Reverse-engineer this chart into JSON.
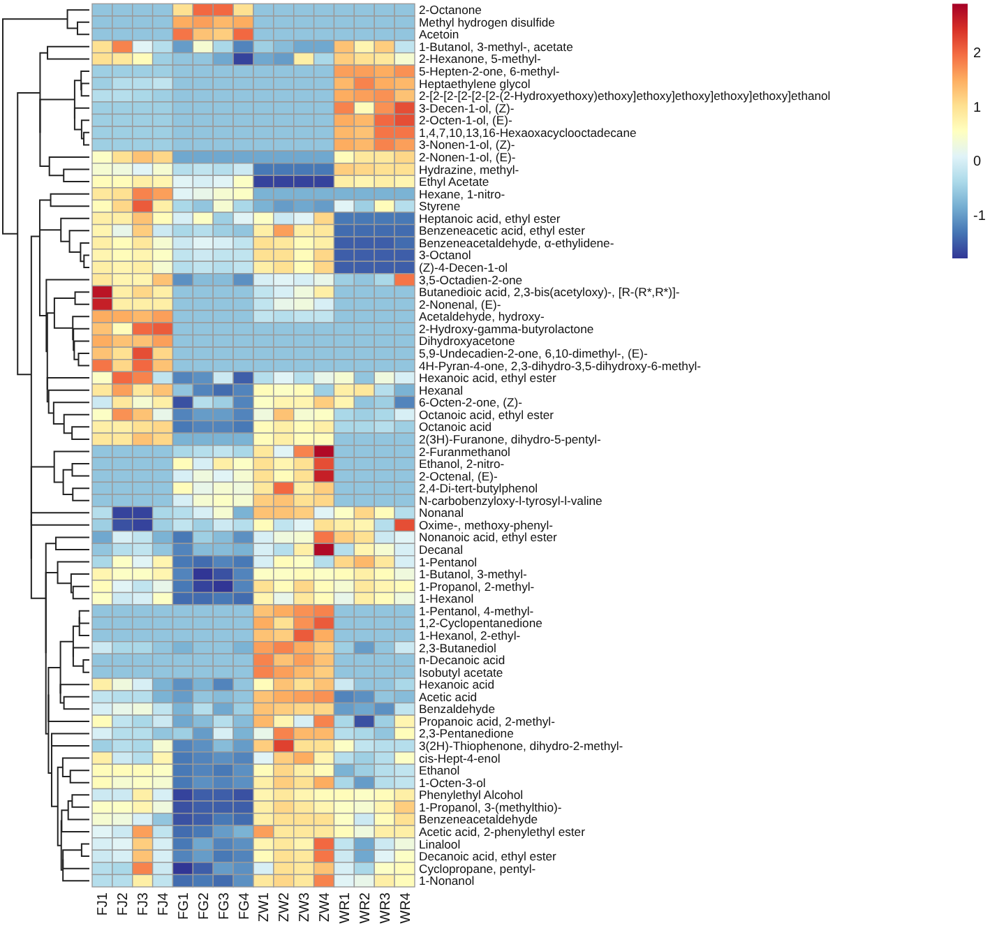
{
  "chart_data": {
    "type": "heatmap",
    "categories": [
      "FJ1",
      "FJ2",
      "FJ3",
      "FJ4",
      "FG1",
      "FG2",
      "FG3",
      "FG4",
      "ZW1",
      "ZW2",
      "ZW3",
      "ZW4",
      "WR1",
      "WR2",
      "WR3",
      "WR4"
    ],
    "y_categories": [
      "2-Octanone",
      "Methyl hydrogen disulfide",
      "Acetoin",
      "1-Butanol, 3-methyl-, acetate",
      "2-Hexanone, 5-methyl-",
      "5-Hepten-2-one, 6-methyl-",
      "Heptaethylene glycol",
      "2-[2-[2-[2-[2-[2-(2-Hydroxyethoxy)ethoxy]ethoxy]ethoxy]ethoxy]ethoxy]ethanol",
      "3-Decen-1-ol, (Z)-",
      "2-Octen-1-ol, (E)-",
      "1,4,7,10,13,16-Hexaoxacyclooctadecane",
      "3-Nonen-1-ol, (Z)-",
      "2-Nonen-1-ol, (E)-",
      "Hydrazine, methyl-",
      "Ethyl Acetate",
      "Hexane, 1-nitro-",
      "Styrene",
      "Heptanoic acid, ethyl ester",
      "Benzeneacetic acid, ethyl ester",
      "Benzeneacetaldehyde, α-ethylidene-",
      "3-Octanol",
      "(Z)-4-Decen-1-ol",
      "3,5-Octadien-2-one",
      "Butanedioic acid, 2,3-bis(acetyloxy)-, [R-(R*,R*)]-",
      "2-Nonenal, (E)-",
      "Acetaldehyde, hydroxy-",
      "2-Hydroxy-gamma-butyrolactone",
      "Dihydroxyacetone",
      "5,9-Undecadien-2-one, 6,10-dimethyl-, (E)-",
      "4H-Pyran-4-one, 2,3-dihydro-3,5-dihydroxy-6-methyl-",
      "Hexanoic acid, ethyl ester",
      "Hexanal",
      "6-Octen-2-one, (Z)-",
      "Octanoic acid, ethyl ester",
      "Octanoic acid",
      "2(3H)-Furanone, dihydro-5-pentyl-",
      "2-Furanmethanol",
      "Ethanol, 2-nitro-",
      "2-Octenal, (E)-",
      "2,4-Di-tert-butylphenol",
      "N-carbobenzyloxy-l-tyrosyl-l-valine",
      "Nonanal",
      "Oxime-, methoxy-phenyl-",
      "Nonanoic acid, ethyl ester",
      "Decanal",
      "1-Pentanol",
      "1-Butanol, 3-methyl-",
      "1-Propanol, 2-methyl-",
      "1-Hexanol",
      "1-Pentanol, 4-methyl-",
      "1,2-Cyclopentanedione",
      "1-Hexanol, 2-ethyl-",
      "2,3-Butanediol",
      "n-Decanoic acid",
      "Isobutyl acetate",
      "Hexanoic acid",
      "Acetic acid",
      "Benzaldehyde",
      "Propanoic acid, 2-methyl-",
      "2,3-Pentanedione",
      "3(2H)-Thiophenone, dihydro-2-methyl-",
      "cis-Hept-4-enol",
      "Ethanol",
      "1-Octen-3-ol",
      "Phenylethyl Alcohol",
      "1-Propanol, 3-(methylthio)-",
      "Benzeneacetaldehyde",
      "Acetic acid, 2-phenylethyl ester",
      "Linalool",
      "Decanoic acid, ethyl ester",
      "Cyclopropane, pentyl-",
      "1-Nonanol"
    ],
    "cells": [
      [
        -0.6,
        -0.6,
        -0.6,
        -0.6,
        1.0,
        2.0,
        2.0,
        1.0,
        -0.6,
        -0.6,
        -0.6,
        -0.6,
        -0.6,
        -0.6,
        -0.6,
        -0.6
      ],
      [
        -0.6,
        -0.6,
        -0.6,
        -0.6,
        1.5,
        1.6,
        1.4,
        1.5,
        -0.6,
        -0.6,
        -0.6,
        -0.6,
        -0.6,
        -0.6,
        -0.6,
        -0.6
      ],
      [
        -0.6,
        -0.6,
        -0.6,
        -0.6,
        1.9,
        1.3,
        1.2,
        2.0,
        -0.6,
        -0.6,
        -0.6,
        -0.6,
        -0.6,
        -0.6,
        -0.6,
        -0.6
      ],
      [
        1.0,
        1.8,
        0.1,
        -0.3,
        -1.0,
        0.4,
        -0.4,
        -1.2,
        -0.5,
        -0.7,
        -0.9,
        -0.9,
        1.3,
        0.7,
        1.2,
        -0.2
      ],
      [
        1.0,
        0.9,
        0.6,
        -0.5,
        -0.6,
        -0.6,
        -0.9,
        -1.7,
        -0.9,
        -1.0,
        0.8,
        -0.4,
        1.2,
        1.0,
        0.9,
        0.4
      ],
      [
        -0.5,
        -0.5,
        -0.5,
        -0.5,
        -0.6,
        -0.6,
        -0.6,
        -0.6,
        -0.6,
        -0.6,
        -0.6,
        -0.6,
        1.6,
        1.6,
        1.5,
        1.7
      ],
      [
        -0.5,
        -0.3,
        -0.3,
        -0.2,
        -0.6,
        -0.6,
        -0.6,
        -0.6,
        -0.6,
        -0.6,
        -0.6,
        -0.6,
        1.4,
        1.8,
        1.5,
        1.4
      ],
      [
        -0.3,
        -0.3,
        -0.4,
        -0.5,
        -0.6,
        -0.6,
        -0.6,
        -0.6,
        -0.6,
        -0.6,
        -0.6,
        -0.6,
        1.5,
        1.6,
        1.7,
        1.3
      ],
      [
        -0.5,
        -0.5,
        -0.5,
        -0.5,
        -0.6,
        -0.6,
        -0.6,
        -0.6,
        -0.6,
        -0.6,
        -0.6,
        -0.6,
        1.8,
        0.6,
        1.7,
        2.2
      ],
      [
        -0.5,
        -0.5,
        -0.5,
        -0.5,
        -0.6,
        -0.6,
        -0.6,
        -0.6,
        -0.6,
        -0.6,
        -0.6,
        -0.6,
        1.5,
        1.4,
        2.0,
        2.2
      ],
      [
        -0.5,
        -0.5,
        -0.5,
        -0.5,
        -0.6,
        -0.6,
        -0.6,
        -0.6,
        -0.6,
        -0.6,
        -0.6,
        -0.6,
        1.4,
        1.3,
        1.9,
        1.9
      ],
      [
        -0.5,
        -0.5,
        -0.5,
        -0.5,
        -0.6,
        -0.6,
        -0.6,
        -0.6,
        -0.6,
        -0.6,
        -0.6,
        -0.6,
        1.5,
        1.4,
        1.8,
        1.6
      ],
      [
        0.5,
        1.0,
        1.3,
        1.1,
        -0.9,
        -0.9,
        -0.9,
        -0.9,
        -0.9,
        -0.9,
        -0.9,
        -0.9,
        0.6,
        0.9,
        0.9,
        1.1
      ],
      [
        0.4,
        0.3,
        0.1,
        0.4,
        -0.3,
        -0.2,
        -0.3,
        -0.1,
        -1.3,
        -1.3,
        -1.3,
        -1.3,
        1.2,
        1.1,
        1.0,
        1.0
      ],
      [
        0.6,
        0.6,
        0.8,
        0.7,
        0.1,
        0.0,
        0.1,
        0.5,
        -1.7,
        -1.7,
        -1.7,
        -1.7,
        0.8,
        0.7,
        0.8,
        0.7
      ],
      [
        0.9,
        1.0,
        1.8,
        1.6,
        0.1,
        0.2,
        0.4,
        0.5,
        -0.8,
        -0.8,
        -0.8,
        -0.8,
        -0.8,
        -0.8,
        -0.8,
        -0.8
      ],
      [
        0.6,
        1.1,
        2.1,
        0.8,
        -0.4,
        -0.6,
        0.4,
        -0.4,
        -0.8,
        -1.0,
        -0.9,
        -1.0,
        0.1,
        -0.5,
        0.6,
        -0.3
      ],
      [
        0.8,
        0.8,
        1.3,
        0.6,
        0.0,
        0.5,
        -0.5,
        0.1,
        0.5,
        -0.1,
        0.1,
        1.1,
        -1.3,
        -1.3,
        -1.3,
        -1.3
      ],
      [
        0.7,
        0.2,
        1.2,
        -0.1,
        -0.4,
        -0.3,
        -0.5,
        -0.6,
        0.8,
        1.6,
        0.8,
        0.9,
        -1.4,
        -1.4,
        -1.4,
        -1.4
      ],
      [
        0.8,
        0.6,
        0.9,
        0.4,
        -0.1,
        0.1,
        0.0,
        -0.2,
        1.0,
        0.9,
        0.6,
        0.8,
        -1.5,
        -1.5,
        -1.5,
        -1.4
      ],
      [
        0.7,
        0.6,
        0.7,
        0.5,
        -0.2,
        -0.1,
        -0.2,
        -0.2,
        1.0,
        1.0,
        0.6,
        1.1,
        -1.5,
        -1.5,
        -1.5,
        -1.5
      ],
      [
        0.8,
        0.7,
        0.8,
        0.4,
        -0.3,
        -0.2,
        -0.3,
        -0.2,
        0.8,
        1.0,
        0.6,
        1.1,
        -1.5,
        -1.5,
        -1.5,
        -1.5
      ],
      [
        0.9,
        0.7,
        0.7,
        1.3,
        -1.1,
        -0.7,
        -0.7,
        -1.1,
        0.0,
        0.1,
        0.0,
        0.2,
        -0.5,
        -0.6,
        -0.4,
        1.9
      ],
      [
        2.7,
        0.8,
        1.1,
        0.8,
        -0.6,
        -0.6,
        -0.6,
        -0.6,
        -0.2,
        0.0,
        0.3,
        0.8,
        -0.6,
        -0.6,
        -0.6,
        -0.6
      ],
      [
        2.6,
        0.8,
        0.8,
        0.8,
        -0.6,
        -0.6,
        -0.6,
        -0.6,
        -0.2,
        0.2,
        0.3,
        0.0,
        -0.6,
        -0.6,
        -0.6,
        -0.6
      ],
      [
        1.5,
        1.5,
        1.4,
        1.6,
        -0.6,
        -0.6,
        -0.6,
        -0.6,
        -0.2,
        -0.3,
        -0.2,
        -0.2,
        -0.6,
        -0.6,
        -0.6,
        -0.6
      ],
      [
        1.3,
        0.6,
        2.0,
        2.1,
        -0.6,
        -0.6,
        -0.6,
        -0.6,
        -0.6,
        -0.6,
        -0.6,
        -0.6,
        -0.6,
        -0.6,
        -0.6,
        -0.6
      ],
      [
        1.5,
        1.3,
        1.3,
        1.6,
        -0.6,
        -0.6,
        -0.6,
        -0.6,
        -0.6,
        -0.6,
        -0.6,
        -0.6,
        -0.6,
        -0.6,
        -0.6,
        -0.6
      ],
      [
        1.3,
        1.0,
        2.2,
        1.1,
        -0.6,
        -0.6,
        -0.6,
        -0.6,
        -0.6,
        -0.6,
        -0.6,
        -0.6,
        -0.6,
        -0.6,
        -0.6,
        -0.6
      ],
      [
        1.9,
        1.1,
        2.0,
        1.3,
        -0.6,
        -0.6,
        -0.6,
        -0.6,
        -0.6,
        -0.6,
        -0.6,
        -0.6,
        -0.6,
        -0.6,
        -0.6,
        -0.6
      ],
      [
        0.5,
        2.0,
        1.8,
        -0.2,
        -1.2,
        -1.1,
        -0.1,
        -1.5,
        -0.3,
        0.1,
        -0.3,
        0.2,
        0.4,
        -0.6,
        0.3,
        0.0
      ],
      [
        0.9,
        1.6,
        0.9,
        1.3,
        -0.6,
        -1.2,
        -1.4,
        -1.2,
        0.6,
        0.5,
        0.6,
        -0.5,
        0.8,
        0.9,
        -0.3,
        -0.8
      ],
      [
        -0.1,
        0.9,
        0.4,
        0.8,
        -1.6,
        -0.3,
        -0.5,
        -1.2,
        0.5,
        0.7,
        0.7,
        1.2,
        0.7,
        -0.6,
        -0.5,
        -1.2
      ],
      [
        0.5,
        1.7,
        1.3,
        0.2,
        -1.2,
        -1.0,
        -1.0,
        -1.2,
        0.3,
        1.3,
        0.4,
        0.5,
        -0.4,
        -0.5,
        -0.4,
        0.0
      ],
      [
        0.8,
        0.8,
        1.0,
        1.1,
        -1.3,
        -1.2,
        -1.2,
        -1.3,
        0.6,
        0.8,
        0.6,
        0.8,
        -0.4,
        -0.4,
        -0.3,
        -0.5
      ],
      [
        0.9,
        0.9,
        1.3,
        1.1,
        -0.8,
        -0.8,
        -0.8,
        -0.8,
        0.6,
        0.8,
        0.6,
        0.6,
        -0.6,
        -0.6,
        -0.6,
        -0.6
      ],
      [
        -0.6,
        -0.6,
        -0.6,
        -0.6,
        -0.4,
        -0.3,
        -0.2,
        -0.4,
        0.9,
        0.1,
        1.8,
        2.8,
        -0.6,
        -0.6,
        -0.6,
        -0.6
      ],
      [
        -0.6,
        -0.6,
        -0.6,
        -0.6,
        0.6,
        0.0,
        0.8,
        0.5,
        1.0,
        0.7,
        1.0,
        2.2,
        -0.6,
        -0.6,
        -0.6,
        -0.6
      ],
      [
        -0.6,
        -0.6,
        -0.6,
        -0.6,
        0.0,
        0.3,
        0.1,
        0.4,
        1.0,
        0.6,
        1.0,
        2.6,
        -0.6,
        -0.6,
        -0.6,
        -0.6
      ],
      [
        -0.6,
        -0.6,
        -0.6,
        -0.6,
        0.6,
        0.2,
        0.4,
        0.3,
        0.9,
        2.0,
        0.8,
        1.2,
        -0.6,
        -0.6,
        -0.6,
        -0.6
      ],
      [
        -0.6,
        -0.6,
        -0.6,
        -0.6,
        0.0,
        0.4,
        0.5,
        0.4,
        1.2,
        1.3,
        1.0,
        1.1,
        -0.6,
        -0.6,
        -0.6,
        -0.6
      ],
      [
        -0.3,
        -1.7,
        -1.7,
        -0.4,
        -0.3,
        0.0,
        0.4,
        -0.8,
        1.3,
        1.3,
        1.2,
        0.1,
        0.5,
        1.1,
        0.6,
        -0.3
      ],
      [
        -0.5,
        -1.6,
        -1.7,
        -0.5,
        -0.2,
        -0.5,
        -0.1,
        -0.3,
        0.6,
        -0.2,
        0.1,
        1.0,
        0.8,
        0.7,
        -0.3,
        2.2
      ],
      [
        -0.9,
        0.0,
        -0.2,
        -0.8,
        -1.3,
        -0.5,
        -0.7,
        -1.1,
        0.0,
        0.3,
        0.4,
        1.9,
        1.2,
        1.0,
        -0.1,
        0.1
      ],
      [
        -0.6,
        -0.3,
        -0.2,
        -0.6,
        -1.2,
        -0.7,
        -0.7,
        -0.8,
        0.0,
        -0.3,
        0.8,
        2.8,
        -0.3,
        0.7,
        0.4,
        0.0
      ],
      [
        -0.4,
        0.5,
        0.1,
        0.7,
        -1.3,
        -1.4,
        -1.2,
        -1.3,
        0.0,
        0.6,
        0.5,
        -0.3,
        1.1,
        1.4,
        0.9,
        0.0
      ],
      [
        0.7,
        0.5,
        0.5,
        0.7,
        -1.2,
        -1.8,
        -1.6,
        -1.2,
        0.5,
        0.5,
        0.6,
        0.5,
        0.6,
        0.8,
        0.6,
        0.3
      ],
      [
        0.6,
        0.1,
        -0.2,
        0.2,
        -1.3,
        -1.7,
        -1.8,
        -1.2,
        1.0,
        0.6,
        1.1,
        0.6,
        0.4,
        0.9,
        0.7,
        0.6
      ],
      [
        0.5,
        -0.1,
        0.0,
        0.5,
        -1.4,
        -1.4,
        -1.3,
        -1.4,
        0.7,
        0.2,
        0.9,
        0.6,
        0.2,
        0.8,
        0.6,
        0.3
      ],
      [
        -0.6,
        -0.6,
        -0.6,
        -0.6,
        -0.6,
        -0.6,
        -0.6,
        -0.6,
        1.3,
        1.5,
        1.7,
        1.8,
        -0.6,
        -0.6,
        -0.6,
        -0.6
      ],
      [
        -0.6,
        -0.6,
        -0.6,
        -0.6,
        -0.6,
        -0.6,
        -0.6,
        -0.6,
        1.5,
        1.0,
        1.7,
        2.1,
        -0.6,
        -0.6,
        -0.6,
        -0.6
      ],
      [
        -0.6,
        -0.6,
        -0.6,
        -0.6,
        -0.6,
        -0.6,
        -0.6,
        -0.6,
        1.3,
        1.2,
        2.1,
        1.5,
        -0.6,
        -0.6,
        -0.6,
        -0.6
      ],
      [
        -0.1,
        -0.4,
        -0.4,
        -0.6,
        -0.8,
        -0.6,
        -0.6,
        -0.8,
        1.6,
        1.8,
        1.5,
        1.2,
        -0.5,
        -1.0,
        -0.6,
        -0.1
      ],
      [
        -0.6,
        -0.6,
        -0.6,
        -0.6,
        -0.6,
        -0.6,
        -0.6,
        -0.6,
        1.8,
        1.3,
        1.6,
        1.3,
        -0.6,
        -0.6,
        -0.6,
        -0.6
      ],
      [
        -0.6,
        -0.6,
        -0.6,
        -0.6,
        -0.6,
        -0.6,
        -0.6,
        -0.6,
        1.8,
        1.6,
        1.4,
        1.2,
        -0.6,
        -0.6,
        -0.6,
        -0.6
      ],
      [
        0.8,
        0.3,
        0.0,
        -0.8,
        -1.1,
        -0.8,
        -1.2,
        -0.6,
        0.6,
        1.3,
        1.0,
        1.3,
        -0.1,
        -0.6,
        -0.6,
        -0.4
      ],
      [
        -0.2,
        -0.3,
        -0.3,
        -0.8,
        -1.0,
        -0.6,
        -0.7,
        -0.6,
        1.3,
        1.5,
        1.6,
        1.7,
        -1.2,
        -1.1,
        -0.6,
        -0.7
      ],
      [
        0.0,
        0.2,
        0.3,
        -0.2,
        -0.8,
        -0.3,
        -0.9,
        -0.5,
        1.3,
        1.2,
        1.1,
        1.1,
        -1.0,
        -0.9,
        -1.1,
        -0.2
      ],
      [
        0.6,
        -0.2,
        -0.4,
        -0.1,
        -0.9,
        -0.7,
        -0.3,
        -0.7,
        1.4,
        0.7,
        0.0,
        1.8,
        -0.4,
        -1.6,
        -0.5,
        0.7
      ],
      [
        0.0,
        -0.3,
        -0.3,
        -0.6,
        -0.5,
        -1.0,
        0.0,
        -0.8,
        0.2,
        1.8,
        1.4,
        1.4,
        -0.3,
        -0.4,
        -0.6,
        0.6
      ],
      [
        -0.5,
        -0.3,
        -0.4,
        0.4,
        -1.2,
        -1.1,
        -0.7,
        -1.0,
        1.2,
        2.3,
        1.0,
        1.0,
        0.5,
        -0.2,
        -0.3,
        -0.3
      ],
      [
        0.8,
        -0.1,
        -0.3,
        0.7,
        -1.3,
        -1.2,
        -1.1,
        -1.2,
        0.1,
        1.2,
        1.5,
        0.7,
        -0.3,
        -0.5,
        -0.3,
        0.5
      ],
      [
        0.6,
        0.6,
        0.6,
        0.5,
        -1.3,
        -1.2,
        -1.3,
        -1.1,
        0.6,
        1.1,
        0.8,
        0.6,
        -0.8,
        -0.5,
        -0.3,
        -0.2
      ],
      [
        0.6,
        0.4,
        0.5,
        0.4,
        -1.3,
        -1.1,
        -1.2,
        -1.1,
        0.8,
        1.2,
        1.0,
        1.5,
        -0.4,
        -1.0,
        -0.3,
        -0.2
      ],
      [
        -0.1,
        -0.1,
        0.8,
        0.0,
        -1.7,
        -1.5,
        -1.5,
        -1.6,
        0.7,
        0.9,
        0.7,
        0.6,
        0.6,
        0.5,
        0.6,
        0.8
      ],
      [
        0.5,
        0.5,
        0.7,
        0.3,
        -1.6,
        -1.5,
        -1.5,
        -1.5,
        0.8,
        1.1,
        0.9,
        0.7,
        0.5,
        0.4,
        0.7,
        1.2
      ],
      [
        0.4,
        0.3,
        0.0,
        -0.6,
        -1.6,
        -1.5,
        -1.3,
        -1.4,
        0.8,
        1.0,
        1.0,
        1.0,
        0.5,
        -0.1,
        0.6,
        1.0
      ],
      [
        0.1,
        -0.1,
        1.6,
        -0.2,
        -1.4,
        -1.3,
        -1.0,
        -0.8,
        1.6,
        0.9,
        0.9,
        0.9,
        0.6,
        0.3,
        0.8,
        0.8
      ],
      [
        0.0,
        0.1,
        1.2,
        0.0,
        -1.3,
        -0.9,
        -1.2,
        -1.1,
        0.7,
        0.9,
        0.7,
        2.0,
        -0.2,
        -0.9,
        -0.1,
        0.3
      ],
      [
        -0.1,
        0.0,
        1.3,
        0.0,
        -1.2,
        -1.0,
        -1.3,
        -1.2,
        0.6,
        1.0,
        0.9,
        1.9,
        -0.1,
        -0.9,
        0.1,
        0.5
      ],
      [
        -0.3,
        -0.4,
        1.8,
        -0.1,
        -1.8,
        -1.5,
        -1.0,
        -1.1,
        0.0,
        1.0,
        0.9,
        1.3,
        0.0,
        -0.4,
        0.5,
        0.6
      ],
      [
        -0.3,
        -0.3,
        0.8,
        -0.2,
        -1.4,
        -1.3,
        -1.4,
        -1.1,
        0.9,
        1.1,
        0.9,
        1.8,
        0.1,
        0.2,
        0.8,
        0.6
      ]
    ],
    "clim": [
      -1.8,
      2.9
    ],
    "cticks": [
      -1,
      0,
      1,
      2
    ]
  }
}
